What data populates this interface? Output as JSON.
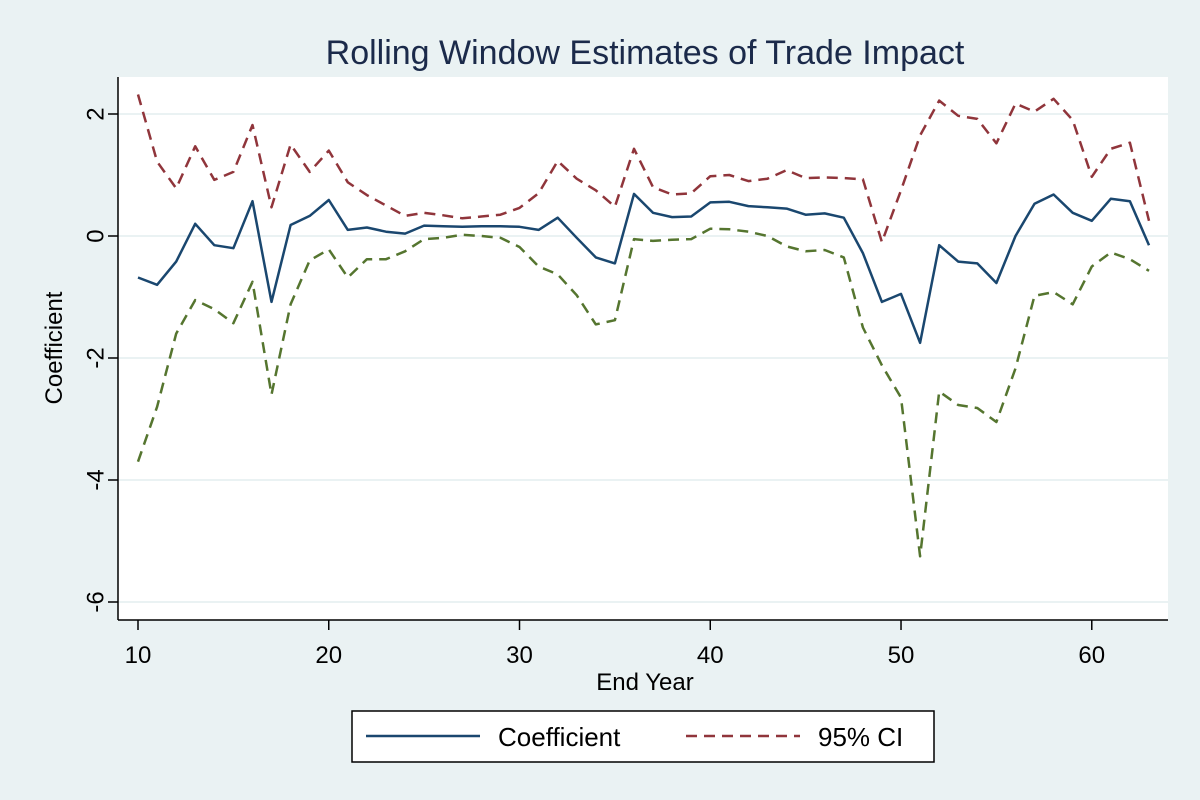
{
  "chart_data": {
    "type": "line",
    "title": "Rolling Window Estimates of Trade Impact",
    "xlabel": "End Year",
    "ylabel": "Coefficient",
    "xlim": [
      10,
      63
    ],
    "ylim": [
      -6,
      2.5
    ],
    "x_ticks": [
      10,
      20,
      30,
      40,
      50,
      60
    ],
    "y_ticks": [
      -6,
      -4,
      -2,
      0,
      2
    ],
    "grid": true,
    "legend_position": "bottom-center",
    "x": [
      10,
      11,
      12,
      13,
      14,
      15,
      16,
      17,
      18,
      19,
      20,
      21,
      22,
      23,
      24,
      25,
      26,
      27,
      28,
      29,
      30,
      31,
      32,
      33,
      34,
      35,
      36,
      37,
      38,
      39,
      40,
      41,
      42,
      43,
      44,
      45,
      46,
      47,
      48,
      49,
      50,
      51,
      52,
      53,
      54,
      55,
      56,
      57,
      58,
      59,
      60,
      61,
      62,
      63
    ],
    "series": [
      {
        "name": "Coefficient",
        "color": "#1a476f",
        "dash": "solid",
        "values": [
          -0.68,
          -0.8,
          -0.42,
          0.2,
          -0.15,
          -0.2,
          0.57,
          -1.08,
          0.18,
          0.33,
          0.59,
          0.1,
          0.14,
          0.07,
          0.04,
          0.17,
          0.16,
          0.15,
          0.16,
          0.16,
          0.15,
          0.1,
          0.3,
          -0.03,
          -0.35,
          -0.45,
          0.69,
          0.38,
          0.31,
          0.32,
          0.55,
          0.56,
          0.49,
          0.47,
          0.45,
          0.35,
          0.37,
          0.3,
          -0.28,
          -1.08,
          -0.95,
          -1.75,
          -0.15,
          -0.42,
          -0.45,
          -0.77,
          0.0,
          0.53,
          0.68,
          0.38,
          0.25,
          0.61,
          0.57,
          -0.15
        ]
      },
      {
        "name": "95% CI",
        "color": "#90353b",
        "dash": "dashed",
        "values": [
          2.32,
          1.22,
          0.78,
          1.47,
          0.92,
          1.05,
          1.82,
          0.47,
          1.5,
          1.05,
          1.4,
          0.88,
          0.67,
          0.5,
          0.33,
          0.38,
          0.34,
          0.29,
          0.32,
          0.35,
          0.46,
          0.7,
          1.23,
          0.94,
          0.75,
          0.48,
          1.43,
          0.8,
          0.68,
          0.7,
          0.98,
          1.0,
          0.9,
          0.94,
          1.08,
          0.95,
          0.96,
          0.95,
          0.93,
          -0.1,
          0.75,
          1.65,
          2.22,
          1.97,
          1.92,
          1.52,
          2.17,
          2.04,
          2.25,
          1.9,
          0.97,
          1.43,
          1.53,
          0.25
        ]
      },
      {
        "name": "",
        "color": "#55752f",
        "dash": "dashed",
        "values": [
          -3.7,
          -2.8,
          -1.6,
          -1.05,
          -1.2,
          -1.43,
          -0.75,
          -2.6,
          -1.12,
          -0.4,
          -0.22,
          -0.68,
          -0.38,
          -0.38,
          -0.25,
          -0.05,
          -0.03,
          0.02,
          0.0,
          -0.03,
          -0.18,
          -0.5,
          -0.63,
          -0.97,
          -1.45,
          -1.38,
          -0.05,
          -0.08,
          -0.06,
          -0.05,
          0.12,
          0.11,
          0.07,
          0.0,
          -0.17,
          -0.25,
          -0.23,
          -0.35,
          -1.5,
          -2.12,
          -2.65,
          -5.25,
          -2.55,
          -2.77,
          -2.82,
          -3.05,
          -2.17,
          -0.98,
          -0.92,
          -1.12,
          -0.5,
          -0.27,
          -0.38,
          -0.57
        ]
      }
    ],
    "legend": [
      {
        "label": "Coefficient",
        "color": "#1a476f",
        "dash": "solid"
      },
      {
        "label": "95% CI",
        "color": "#90353b",
        "dash": "dashed"
      }
    ]
  }
}
